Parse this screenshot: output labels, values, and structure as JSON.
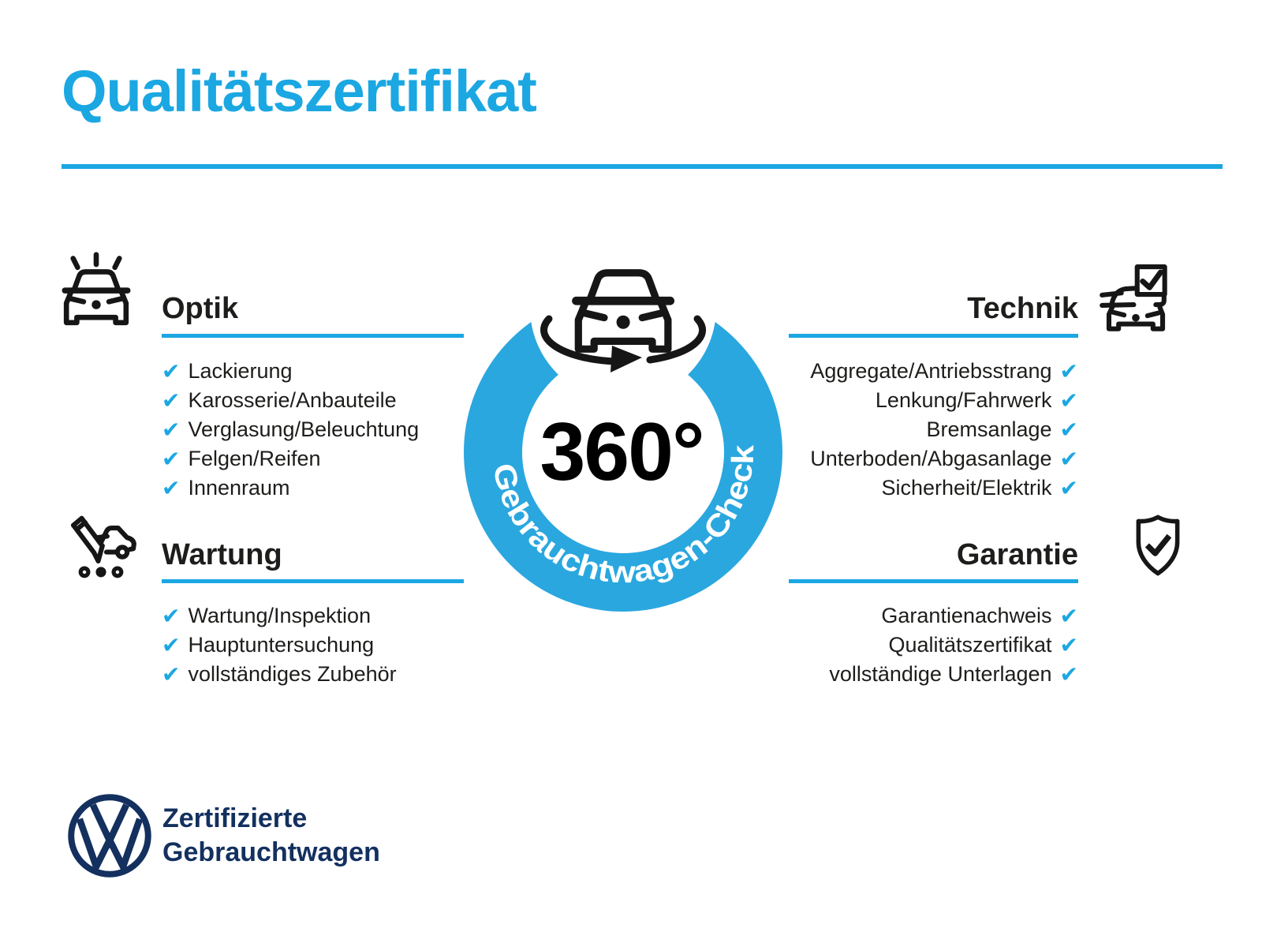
{
  "page": {
    "title": "Qualitätszertifikat"
  },
  "badge": {
    "degree": "360°",
    "ring_label": "Gebrauchtwagen-Check",
    "center_icon": "car-front-rotation-icon"
  },
  "sections": [
    {
      "title": "Optik",
      "align": "left",
      "icon": "car-front-shine-icon",
      "items": [
        "Lackierung",
        "Karosserie/Anbauteile",
        "Verglasung/Beleuchtung",
        "Felgen/Reifen",
        "Innenraum"
      ]
    },
    {
      "title": "Technik",
      "align": "right",
      "icon": "car-checklist-icon",
      "items": [
        "Aggregate/Antriebsstrang",
        "Lenkung/Fahrwerk",
        "Bremsanlage",
        "Unterboden/Abgasanlage",
        "Sicherheit/Elektrik"
      ]
    },
    {
      "title": "Wartung",
      "align": "left",
      "icon": "pencil-car-icon",
      "items": [
        "Wartung/Inspektion",
        "Hauptuntersuchung",
        "vollständiges Zubehör"
      ]
    },
    {
      "title": "Garantie",
      "align": "right",
      "icon": "shield-check-icon",
      "items": [
        "Garantienachweis",
        "Qualitätszertifikat",
        "vollständige Unterlagen"
      ]
    }
  ],
  "checklist": {
    "check_glyph": "✔"
  },
  "footer": {
    "line1": "Zertifizierte",
    "line2": "Gebrauchtwagen",
    "logo": "vw-logo"
  },
  "colors": {
    "accent": "#1ba7e2",
    "ring_blue": "#2aa7df",
    "navy": "#13305f",
    "text": "#1d1d1b",
    "icon_black": "#161616"
  }
}
